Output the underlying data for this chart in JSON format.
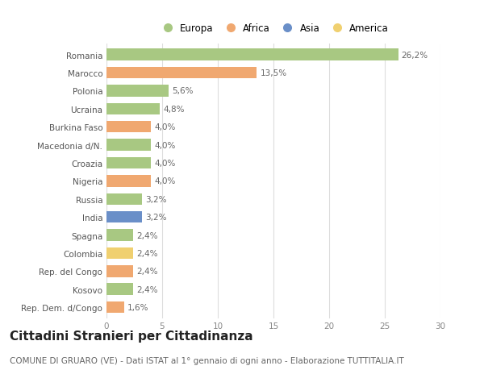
{
  "countries": [
    "Romania",
    "Marocco",
    "Polonia",
    "Ucraina",
    "Burkina Faso",
    "Macedonia d/N.",
    "Croazia",
    "Nigeria",
    "Russia",
    "India",
    "Spagna",
    "Colombia",
    "Rep. del Congo",
    "Kosovo",
    "Rep. Dem. d/Congo"
  ],
  "values": [
    26.2,
    13.5,
    5.6,
    4.8,
    4.0,
    4.0,
    4.0,
    4.0,
    3.2,
    3.2,
    2.4,
    2.4,
    2.4,
    2.4,
    1.6
  ],
  "labels": [
    "26,2%",
    "13,5%",
    "5,6%",
    "4,8%",
    "4,0%",
    "4,0%",
    "4,0%",
    "4,0%",
    "3,2%",
    "3,2%",
    "2,4%",
    "2,4%",
    "2,4%",
    "2,4%",
    "1,6%"
  ],
  "continents": [
    "Europa",
    "Africa",
    "Europa",
    "Europa",
    "Africa",
    "Europa",
    "Europa",
    "Africa",
    "Europa",
    "Asia",
    "Europa",
    "America",
    "Africa",
    "Europa",
    "Africa"
  ],
  "continent_colors": {
    "Europa": "#a8c882",
    "Africa": "#f0a870",
    "Asia": "#6a8fc8",
    "America": "#f0d070"
  },
  "legend_order": [
    "Europa",
    "Africa",
    "Asia",
    "America"
  ],
  "xlim": [
    0,
    30
  ],
  "xticks": [
    0,
    5,
    10,
    15,
    20,
    25,
    30
  ],
  "title": "Cittadini Stranieri per Cittadinanza",
  "subtitle": "COMUNE DI GRUARO (VE) - Dati ISTAT al 1° gennaio di ogni anno - Elaborazione TUTTITALIA.IT",
  "background_color": "#ffffff",
  "grid_color": "#dddddd",
  "bar_height": 0.65,
  "title_fontsize": 11,
  "subtitle_fontsize": 7.5,
  "label_fontsize": 7.5,
  "tick_fontsize": 7.5,
  "legend_fontsize": 8.5
}
